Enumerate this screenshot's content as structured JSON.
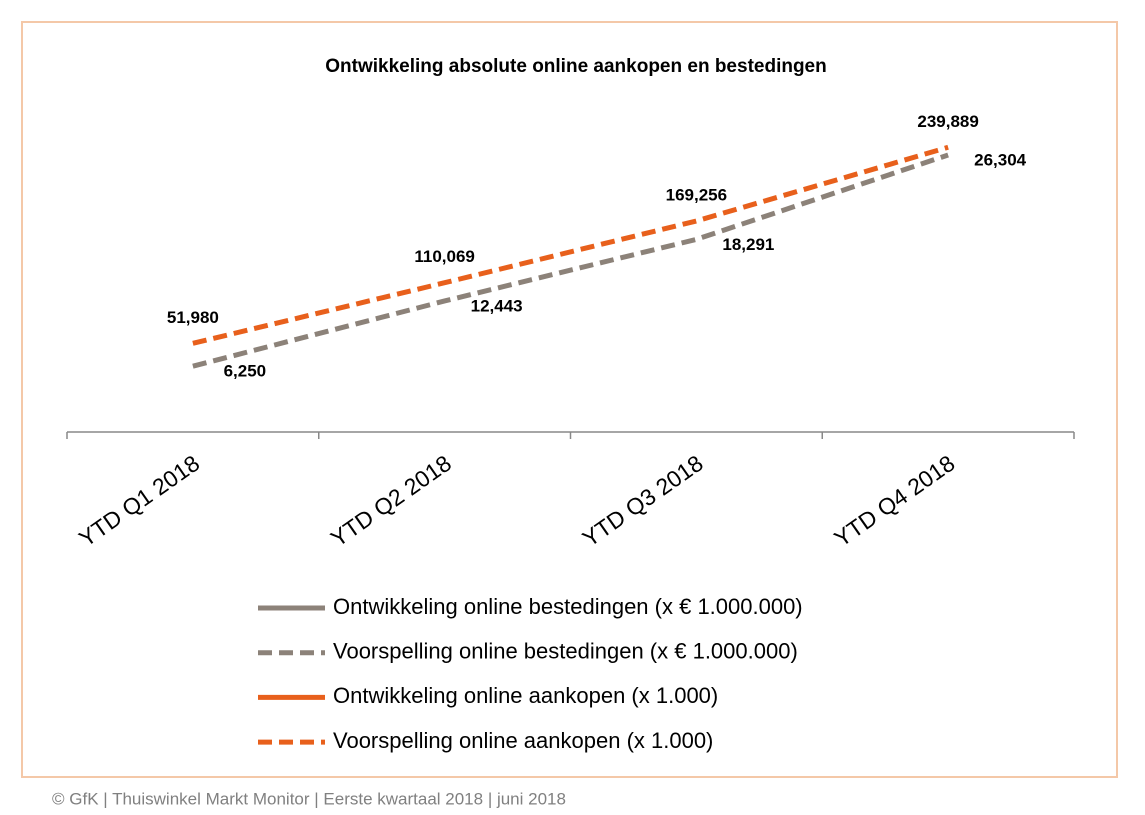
{
  "chart_data": {
    "type": "line",
    "title": "Ontwikkeling absolute online aankopen en bestedingen",
    "categories": [
      "YTD Q1 2018",
      "YTD Q2 2018",
      "YTD Q3 2018",
      "YTD Q4 2018"
    ],
    "ylim": [
      0,
      32000
    ],
    "y2lim": [
      -33000,
      290000
    ],
    "series": [
      {
        "name": "Ontwikkeling online bestedingen (x € 1.000.000)",
        "color": "#8c8279",
        "style": "solid",
        "values": [
          null,
          null,
          null,
          null
        ]
      },
      {
        "name": "Voorspelling online bestedingen (x € 1.000.000)",
        "color": "#8c8279",
        "style": "dashed",
        "values": [
          6250,
          12443,
          18291,
          26304
        ],
        "value_labels": [
          "6,250",
          "12,443",
          "18,291",
          "26,304"
        ]
      },
      {
        "name": "Ontwikkeling online aankopen (x 1.000)",
        "color": "#e8601c",
        "style": "solid",
        "axis": "y2",
        "values": [
          null,
          null,
          null,
          null
        ]
      },
      {
        "name": "Voorspelling online aankopen (x 1.000)",
        "color": "#e8601c",
        "style": "dashed",
        "axis": "y2",
        "values": [
          51980,
          110069,
          169256,
          239889
        ],
        "value_labels": [
          "51,980",
          "110,069",
          "169,256",
          "239,889"
        ]
      }
    ],
    "legend": "bottom"
  },
  "footer": "© GfK | Thuiswinkel Markt Monitor | Eerste kwartaal 2018 | juni 2018"
}
